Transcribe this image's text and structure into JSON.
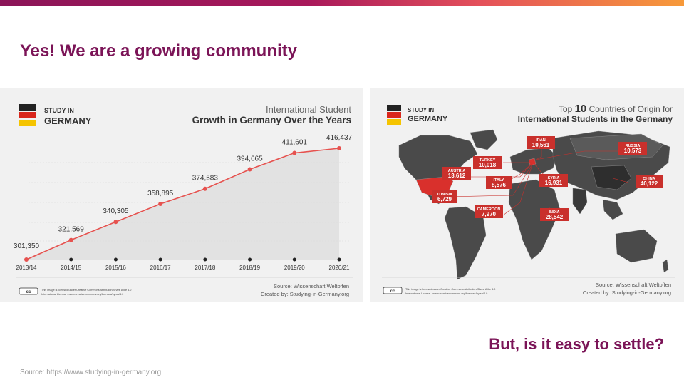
{
  "slide": {
    "title": "Yes! We are a growing community",
    "question": "But, is it easy to settle?",
    "source": "Source: https://www.studying-in-germany.org"
  },
  "colors": {
    "accent": "#7b1457",
    "chart_red": "#e6524f",
    "map_label": "#c9302c"
  },
  "left_infographic": {
    "logo_line1": "STUDY IN",
    "logo_line2": "GERMANY",
    "title_line1": "International Student",
    "title_line2": "Growth in Germany Over the Years",
    "license_line1": "This image is licensed under Creative Commons Attribution-Share Alike 4.0",
    "license_line2": "International License - www.creativecommons.org/licenses/by-sa/4.0",
    "source_line": "Source: Wissenschaft Weltoffen",
    "created_line": "Created by: Studying-in-Germany.org",
    "cc_badge": "cc"
  },
  "chart_data": {
    "type": "area",
    "title": "International Student Growth in Germany Over the Years",
    "categories": [
      "2013/14",
      "2014/15",
      "2015/16",
      "2016/17",
      "2017/18",
      "2018/19",
      "2019/20",
      "2020/21"
    ],
    "values": [
      301350,
      321569,
      340305,
      358895,
      374583,
      394665,
      411601,
      416437
    ],
    "value_labels": [
      "301,350",
      "321,569",
      "340,305",
      "358,895",
      "374,583",
      "394,665",
      "411,601",
      "416,437"
    ],
    "ylim": [
      301350,
      416437
    ],
    "grid": true,
    "xlabel": "",
    "ylabel": ""
  },
  "right_infographic": {
    "logo_line1": "STUDY IN",
    "logo_line2": "GERMANY",
    "title_prefix": "Top",
    "title_number": "10",
    "title_suffix": "Countries of Origin for",
    "title_line2": "International Students in the Germany",
    "countries": [
      {
        "name": "IRAN",
        "value": "10,561"
      },
      {
        "name": "RUSSIA",
        "value": "10,573"
      },
      {
        "name": "TURKEY",
        "value": "10,018"
      },
      {
        "name": "AUSTRIA",
        "value": "13,612"
      },
      {
        "name": "ITALY",
        "value": "8,576"
      },
      {
        "name": "SYRIA",
        "value": "16,931"
      },
      {
        "name": "CHINA",
        "value": "40,122"
      },
      {
        "name": "TUNISIA",
        "value": "6,729"
      },
      {
        "name": "CAMEROON",
        "value": "7,970"
      },
      {
        "name": "INDIA",
        "value": "28,542"
      }
    ],
    "license_line1": "This image is licensed under Creative Commons Attribution-Share Alike 4.0",
    "license_line2": "International License - www.creativecommons.org/licenses/by-sa/4.0",
    "source_line": "Source: Wissenschaft Weltoffen",
    "created_line": "Created by: Studying-in-Germany.org",
    "cc_badge": "cc"
  }
}
